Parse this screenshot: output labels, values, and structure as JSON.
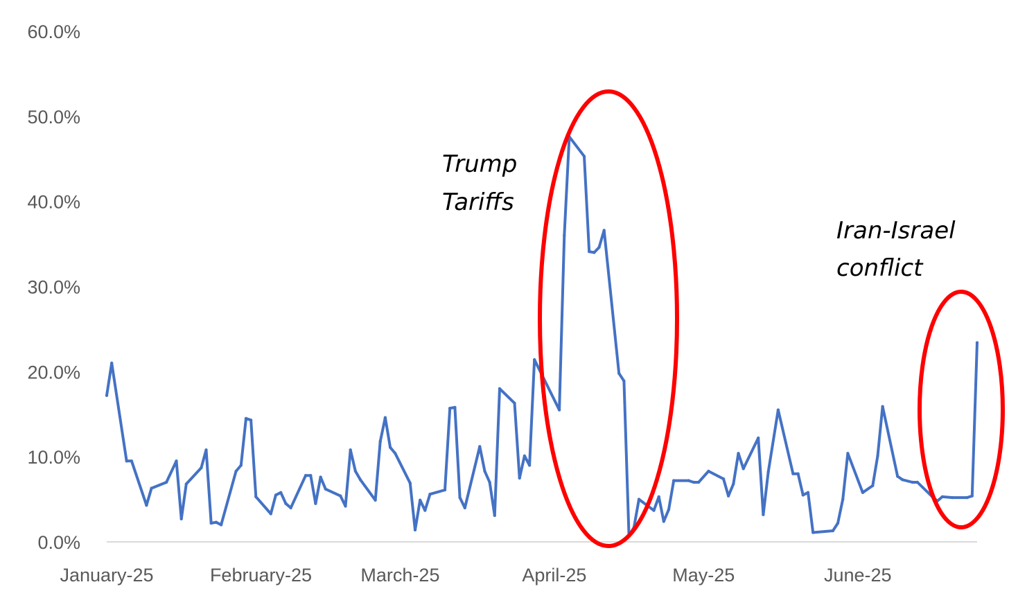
{
  "chart_data": {
    "type": "line",
    "title": "",
    "xlabel": "",
    "ylabel": "",
    "ylim": [
      0,
      60
    ],
    "y_ticks": [
      "0.0%",
      "10.0%",
      "20.0%",
      "30.0%",
      "40.0%",
      "50.0%",
      "60.0%"
    ],
    "y_tick_values": [
      0,
      10,
      20,
      30,
      40,
      50,
      60
    ],
    "x_ticks": [
      "January-25",
      "February-25",
      "March-25",
      "April-25",
      "May-25",
      "June-25"
    ],
    "x_tick_dates": [
      "2025-01-01",
      "2025-02-01",
      "2025-03-01",
      "2025-04-01",
      "2025-05-01",
      "2025-06-01"
    ],
    "grid": false,
    "legend": "none",
    "line_color": "#4472C4",
    "series": [
      {
        "points": [
          [
            "2025-01-01",
            17.2
          ],
          [
            "2025-01-02",
            21.0
          ],
          [
            "2025-01-05",
            9.5
          ],
          [
            "2025-01-06",
            9.5
          ],
          [
            "2025-01-09",
            4.3
          ],
          [
            "2025-01-10",
            6.3
          ],
          [
            "2025-01-13",
            7.0
          ],
          [
            "2025-01-15",
            9.5
          ],
          [
            "2025-01-16",
            2.7
          ],
          [
            "2025-01-17",
            6.8
          ],
          [
            "2025-01-20",
            8.7
          ],
          [
            "2025-01-21",
            10.8
          ],
          [
            "2025-01-22",
            2.2
          ],
          [
            "2025-01-23",
            2.3
          ],
          [
            "2025-01-24",
            2.0
          ],
          [
            "2025-01-27",
            8.3
          ],
          [
            "2025-01-28",
            9.0
          ],
          [
            "2025-01-29",
            14.5
          ],
          [
            "2025-01-30",
            14.3
          ],
          [
            "2025-01-31",
            5.3
          ],
          [
            "2025-02-03",
            3.3
          ],
          [
            "2025-02-04",
            5.5
          ],
          [
            "2025-02-05",
            5.8
          ],
          [
            "2025-02-06",
            4.5
          ],
          [
            "2025-02-07",
            4.0
          ],
          [
            "2025-02-10",
            7.8
          ],
          [
            "2025-02-11",
            7.8
          ],
          [
            "2025-02-12",
            4.5
          ],
          [
            "2025-02-13",
            7.6
          ],
          [
            "2025-02-14",
            6.2
          ],
          [
            "2025-02-17",
            5.4
          ],
          [
            "2025-02-18",
            4.2
          ],
          [
            "2025-02-19",
            10.8
          ],
          [
            "2025-02-20",
            8.3
          ],
          [
            "2025-02-21",
            7.3
          ],
          [
            "2025-02-24",
            4.9
          ],
          [
            "2025-02-25",
            11.8
          ],
          [
            "2025-02-26",
            14.6
          ],
          [
            "2025-02-27",
            11.1
          ],
          [
            "2025-02-28",
            10.4
          ],
          [
            "2025-03-03",
            6.9
          ],
          [
            "2025-03-04",
            1.4
          ],
          [
            "2025-03-05",
            4.9
          ],
          [
            "2025-03-06",
            3.7
          ],
          [
            "2025-03-07",
            5.6
          ],
          [
            "2025-03-10",
            6.1
          ],
          [
            "2025-03-11",
            15.7
          ],
          [
            "2025-03-12",
            15.8
          ],
          [
            "2025-03-13",
            5.2
          ],
          [
            "2025-03-14",
            4.0
          ],
          [
            "2025-03-17",
            11.2
          ],
          [
            "2025-03-18",
            8.3
          ],
          [
            "2025-03-19",
            7.0
          ],
          [
            "2025-03-20",
            3.1
          ],
          [
            "2025-03-21",
            18.0
          ],
          [
            "2025-03-24",
            16.3
          ],
          [
            "2025-03-25",
            7.5
          ],
          [
            "2025-03-26",
            10.1
          ],
          [
            "2025-03-27",
            9.0
          ],
          [
            "2025-03-28",
            21.4
          ],
          [
            "2025-04-02",
            15.5
          ],
          [
            "2025-04-03",
            36.0
          ],
          [
            "2025-04-04",
            47.6
          ],
          [
            "2025-04-07",
            45.3
          ],
          [
            "2025-04-08",
            34.1
          ],
          [
            "2025-04-09",
            34.0
          ],
          [
            "2025-04-10",
            34.6
          ],
          [
            "2025-04-11",
            36.6
          ],
          [
            "2025-04-14",
            19.8
          ],
          [
            "2025-04-15",
            18.9
          ],
          [
            "2025-04-16",
            0.7
          ],
          [
            "2025-04-17",
            1.7
          ],
          [
            "2025-04-18",
            5.0
          ],
          [
            "2025-04-21",
            3.7
          ],
          [
            "2025-04-22",
            5.3
          ],
          [
            "2025-04-23",
            2.4
          ],
          [
            "2025-04-24",
            3.8
          ],
          [
            "2025-04-25",
            7.2
          ],
          [
            "2025-04-28",
            7.2
          ],
          [
            "2025-04-29",
            7.0
          ],
          [
            "2025-04-30",
            7.0
          ],
          [
            "2025-05-02",
            8.3
          ],
          [
            "2025-05-05",
            7.4
          ],
          [
            "2025-05-06",
            5.4
          ],
          [
            "2025-05-07",
            6.8
          ],
          [
            "2025-05-08",
            10.4
          ],
          [
            "2025-05-09",
            8.6
          ],
          [
            "2025-05-12",
            12.2
          ],
          [
            "2025-05-13",
            3.2
          ],
          [
            "2025-05-14",
            8.2
          ],
          [
            "2025-05-16",
            15.5
          ],
          [
            "2025-05-19",
            8.0
          ],
          [
            "2025-05-20",
            8.0
          ],
          [
            "2025-05-21",
            5.5
          ],
          [
            "2025-05-22",
            5.8
          ],
          [
            "2025-05-23",
            1.1
          ],
          [
            "2025-05-27",
            1.3
          ],
          [
            "2025-05-28",
            2.2
          ],
          [
            "2025-05-29",
            5.0
          ],
          [
            "2025-05-30",
            10.4
          ],
          [
            "2025-06-02",
            5.8
          ],
          [
            "2025-06-04",
            6.6
          ],
          [
            "2025-06-05",
            10.1
          ],
          [
            "2025-06-06",
            15.9
          ],
          [
            "2025-06-09",
            7.7
          ],
          [
            "2025-06-10",
            7.3
          ],
          [
            "2025-06-12",
            7.0
          ],
          [
            "2025-06-13",
            7.0
          ],
          [
            "2025-06-16",
            5.3
          ],
          [
            "2025-06-17",
            4.8
          ],
          [
            "2025-06-18",
            5.3
          ],
          [
            "2025-06-20",
            5.2
          ],
          [
            "2025-06-23",
            5.2
          ],
          [
            "2025-06-24",
            5.4
          ],
          [
            "2025-06-25",
            23.4
          ]
        ]
      }
    ],
    "annotations": [
      {
        "lines": [
          "Trump",
          "Tariffs"
        ],
        "color": "#000000",
        "style": "italic"
      },
      {
        "lines": [
          "Iran-Israel",
          "conflict"
        ],
        "color": "#000000",
        "style": "italic"
      }
    ],
    "highlights": [
      {
        "from": "2025-03-28",
        "to": "2025-04-15",
        "color": "#FF0000"
      },
      {
        "from": "2025-06-16",
        "to": "2025-06-25",
        "color": "#FF0000"
      }
    ]
  }
}
